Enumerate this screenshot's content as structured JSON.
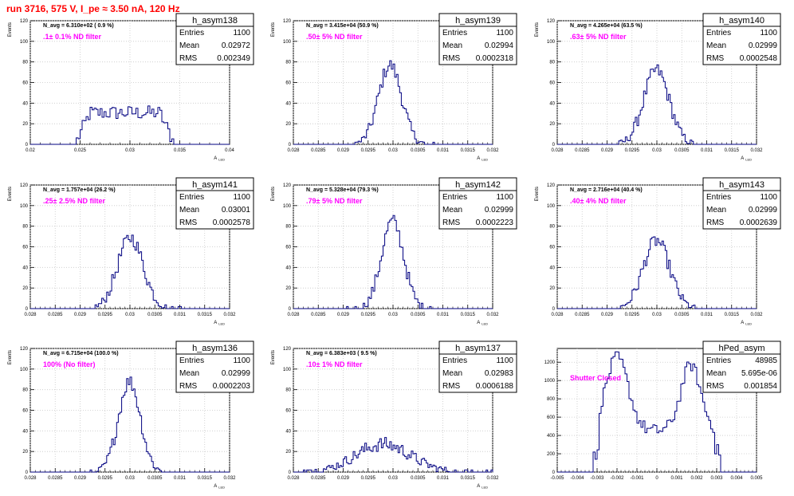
{
  "page": {
    "title": "run 3716,   575 V, I_pe ≈ 3.50 nA, 120 Hz"
  },
  "colors": {
    "hist_line": "#000080",
    "annotation": "#ff00ff",
    "title": "#ff0000",
    "grid": "#c8c8c8",
    "axis": "#000000"
  },
  "chart_data": [
    {
      "type": "bar",
      "name": "h_asym138",
      "ylabel": "Events",
      "xlabel": "A_LED",
      "xlim": [
        0.02,
        0.04
      ],
      "ylim": [
        0,
        120
      ],
      "grid": true,
      "xticks": [
        "0.02",
        "0.025",
        "0.03",
        "0.035",
        "0.04"
      ],
      "yticks": [
        "0",
        "20",
        "40",
        "60",
        "80",
        "100",
        "120"
      ],
      "navg_text": "N_avg = 6.310e+02 ( 0.9 %)",
      "filter_text": ".1± 0.1% ND filter",
      "stats": {
        "entries": "1100",
        "mean": "0.02972",
        "rms": "0.002349"
      },
      "shape": {
        "kind": "flat",
        "lo": 0.0245,
        "hi": 0.0345,
        "peak": 36
      }
    },
    {
      "type": "bar",
      "name": "h_asym139",
      "ylabel": "Events",
      "xlabel": "A_LED",
      "xlim": [
        0.028,
        0.032
      ],
      "ylim": [
        0,
        120
      ],
      "grid": true,
      "xticks": [
        "0.028",
        "0.0285",
        "0.029",
        "0.0295",
        "0.03",
        "0.0305",
        "0.031",
        "0.0315",
        "0.032"
      ],
      "yticks": [
        "0",
        "20",
        "40",
        "60",
        "80",
        "100",
        "120"
      ],
      "navg_text": "N_avg = 3.415e+04 (50.9 %)",
      "filter_text": ".50± 5% ND filter",
      "stats": {
        "entries": "1100",
        "mean": "0.02994",
        "rms": "0.0002318"
      },
      "shape": {
        "kind": "gauss",
        "mu": 0.02994,
        "sigma": 0.000232,
        "peak": 77
      }
    },
    {
      "type": "bar",
      "name": "h_asym140",
      "ylabel": "Events",
      "xlabel": "A_LED",
      "xlim": [
        0.028,
        0.032
      ],
      "ylim": [
        0,
        120
      ],
      "grid": true,
      "xticks": [
        "0.028",
        "0.0285",
        "0.029",
        "0.0295",
        "0.03",
        "0.0305",
        "0.031",
        "0.0315",
        "0.032"
      ],
      "yticks": [
        "0",
        "20",
        "40",
        "60",
        "80",
        "100",
        "120"
      ],
      "navg_text": "N_avg = 4.265e+04 (63.5 %)",
      "filter_text": ".63± 5% ND filter",
      "stats": {
        "entries": "1100",
        "mean": "0.02999",
        "rms": "0.0002548"
      },
      "shape": {
        "kind": "gauss",
        "mu": 0.02999,
        "sigma": 0.000255,
        "peak": 72
      }
    },
    {
      "type": "bar",
      "name": "h_asym141",
      "ylabel": "Events",
      "xlabel": "A_LED",
      "xlim": [
        0.028,
        0.032
      ],
      "ylim": [
        0,
        120
      ],
      "grid": true,
      "xticks": [
        "0.028",
        "0.0285",
        "0.029",
        "0.0295",
        "0.03",
        "0.0305",
        "0.031",
        "0.0315",
        "0.032"
      ],
      "yticks": [
        "0",
        "20",
        "40",
        "60",
        "80",
        "100",
        "120"
      ],
      "navg_text": "N_avg = 1.757e+04 (26.2 %)",
      "filter_text": ".25± 2.5% ND filter",
      "stats": {
        "entries": "1100",
        "mean": "0.03001",
        "rms": "0.0002578"
      },
      "shape": {
        "kind": "gauss",
        "mu": 0.03001,
        "sigma": 0.000258,
        "peak": 69
      }
    },
    {
      "type": "bar",
      "name": "h_asym142",
      "ylabel": "Events",
      "xlabel": "A_LED",
      "xlim": [
        0.028,
        0.032
      ],
      "ylim": [
        0,
        120
      ],
      "grid": true,
      "xticks": [
        "0.028",
        "0.0285",
        "0.029",
        "0.0295",
        "0.03",
        "0.0305",
        "0.031",
        "0.0315",
        "0.032"
      ],
      "yticks": [
        "0",
        "20",
        "40",
        "60",
        "80",
        "100",
        "120"
      ],
      "navg_text": "N_avg = 5.328e+04 (79.3 %)",
      "filter_text": ".79± 5% ND filter",
      "stats": {
        "entries": "1100",
        "mean": "0.02999",
        "rms": "0.0002223"
      },
      "shape": {
        "kind": "gauss",
        "mu": 0.02999,
        "sigma": 0.000222,
        "peak": 85
      }
    },
    {
      "type": "bar",
      "name": "h_asym143",
      "ylabel": "Events",
      "xlabel": "A_LED",
      "xlim": [
        0.028,
        0.032
      ],
      "ylim": [
        0,
        120
      ],
      "grid": true,
      "xticks": [
        "0.028",
        "0.0285",
        "0.029",
        "0.0295",
        "0.03",
        "0.0305",
        "0.031",
        "0.0315",
        "0.032"
      ],
      "yticks": [
        "0",
        "20",
        "40",
        "60",
        "80",
        "100",
        "120"
      ],
      "navg_text": "N_avg = 2.716e+04 (40.4 %)",
      "filter_text": ".40± 4% ND filter",
      "stats": {
        "entries": "1100",
        "mean": "0.02999",
        "rms": "0.0002639"
      },
      "shape": {
        "kind": "gauss",
        "mu": 0.02999,
        "sigma": 0.000264,
        "peak": 66
      }
    },
    {
      "type": "bar",
      "name": "h_asym136",
      "ylabel": "Events",
      "xlabel": "A_LED",
      "xlim": [
        0.028,
        0.032
      ],
      "ylim": [
        0,
        120
      ],
      "grid": true,
      "xticks": [
        "0.028",
        "0.0285",
        "0.029",
        "0.0295",
        "0.03",
        "0.0305",
        "0.031",
        "0.0315",
        "0.032"
      ],
      "yticks": [
        "0",
        "20",
        "40",
        "60",
        "80",
        "100",
        "120"
      ],
      "navg_text": "N_avg = 6.715e+04 (100.0 %)",
      "filter_text": "100% (No filter)",
      "stats": {
        "entries": "1100",
        "mean": "0.02999",
        "rms": "0.0002203"
      },
      "shape": {
        "kind": "gauss",
        "mu": 0.02999,
        "sigma": 0.00022,
        "peak": 88
      }
    },
    {
      "type": "bar",
      "name": "h_asym137",
      "ylabel": "Events",
      "xlabel": "A_LED",
      "xlim": [
        0.028,
        0.032
      ],
      "ylim": [
        0,
        120
      ],
      "grid": true,
      "xticks": [
        "0.028",
        "0.0285",
        "0.029",
        "0.0295",
        "0.03",
        "0.0305",
        "0.031",
        "0.0315",
        "0.032"
      ],
      "yticks": [
        "0",
        "20",
        "40",
        "60",
        "80",
        "100",
        "120"
      ],
      "navg_text": "N_avg = 6.383e+03 ( 9.5 %)",
      "filter_text": ".10± 1% ND filter",
      "stats": {
        "entries": "1100",
        "mean": "0.02983",
        "rms": "0.0006188"
      },
      "shape": {
        "kind": "gauss",
        "mu": 0.0298,
        "sigma": 0.00055,
        "peak": 27
      }
    },
    {
      "type": "bar",
      "name": "hPed_asym",
      "ylabel": "",
      "xlabel": "",
      "xlim": [
        -0.005,
        0.005
      ],
      "ylim": [
        0,
        1350
      ],
      "grid": true,
      "xticks": [
        "-0.005",
        "-0.004",
        "-0.003",
        "-0.002",
        "-0.001",
        "0",
        "0.001",
        "0.002",
        "0.003",
        "0.004",
        "0.005"
      ],
      "yticks": [
        "0",
        "200",
        "400",
        "600",
        "800",
        "1000",
        "1200"
      ],
      "navg_text": "",
      "filter_text": "Shutter Closed",
      "stats": {
        "entries": "48985",
        "mean": "5.695e-06",
        "rms": "0.001854"
      },
      "shape": {
        "kind": "double",
        "peak": 1250
      }
    }
  ]
}
